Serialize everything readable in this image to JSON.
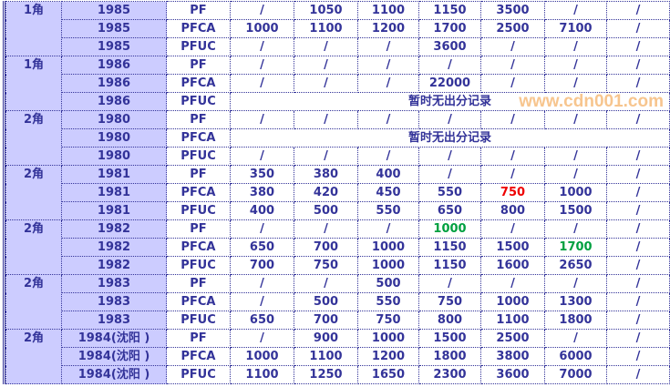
{
  "colors": {
    "text": "#333399",
    "header_bg": "#ccccff",
    "highlight_red": "#ee0000",
    "highlight_green": "#00a040"
  },
  "no_record_text": "暂时无出分记录",
  "watermark": "www.cdn001.com",
  "groups": [
    {
      "denom": "1角",
      "rows": [
        {
          "year": "1985",
          "grade": "PF",
          "values": [
            "/",
            "1050",
            "1100",
            "1150",
            "3500",
            "/",
            "/"
          ]
        },
        {
          "year": "1985",
          "grade": "PFCA",
          "values": [
            "1000",
            "1100",
            "1200",
            "1700",
            "2500",
            "7100",
            "/"
          ]
        },
        {
          "year": "1985",
          "grade": "PFUC",
          "values": [
            "/",
            "/",
            "/",
            "3600",
            "/",
            "/",
            "/"
          ]
        }
      ]
    },
    {
      "denom": "1角",
      "rows": [
        {
          "year": "1986",
          "grade": "PF",
          "values": [
            "/",
            "/",
            "/",
            "/",
            "/",
            "/",
            "/"
          ]
        },
        {
          "year": "1986",
          "grade": "PFCA",
          "values": [
            "/",
            "/",
            "/",
            "22000",
            "/",
            "/",
            "/"
          ]
        },
        {
          "year": "1986",
          "grade": "PFUC",
          "note": "暂时无出分记录"
        }
      ]
    },
    {
      "denom": "2角",
      "rows": [
        {
          "year": "1980",
          "grade": "PF",
          "values": [
            "/",
            "/",
            "/",
            "/",
            "/",
            "/",
            "/"
          ]
        },
        {
          "year": "1980",
          "grade": "PFCA",
          "note": "暂时无出分记录"
        },
        {
          "year": "1980",
          "grade": "PFUC",
          "values": [
            "/",
            "/",
            "/",
            "/",
            "/",
            "/",
            "/"
          ]
        }
      ]
    },
    {
      "denom": "2角",
      "rows": [
        {
          "year": "1981",
          "grade": "PF",
          "values": [
            "350",
            "380",
            "400",
            "/",
            "/",
            "/",
            "/"
          ]
        },
        {
          "year": "1981",
          "grade": "PFCA",
          "values": [
            "380",
            "420",
            "450",
            "550",
            {
              "v": "750",
              "c": "red"
            },
            "1000",
            "/"
          ]
        },
        {
          "year": "1981",
          "grade": "PFUC",
          "values": [
            "400",
            "500",
            "550",
            "650",
            "800",
            "1500",
            "/"
          ]
        }
      ]
    },
    {
      "denom": "2角",
      "rows": [
        {
          "year": "1982",
          "grade": "PF",
          "values": [
            "/",
            "/",
            "/",
            {
              "v": "1000",
              "c": "green"
            },
            "/",
            "/",
            "/"
          ]
        },
        {
          "year": "1982",
          "grade": "PFCA",
          "values": [
            "650",
            "700",
            "1000",
            "1150",
            "1500",
            {
              "v": "1700",
              "c": "green"
            },
            "/"
          ]
        },
        {
          "year": "1982",
          "grade": "PFUC",
          "values": [
            "700",
            "750",
            "1000",
            "1150",
            "1600",
            "2650",
            "/"
          ]
        }
      ]
    },
    {
      "denom": "2角",
      "rows": [
        {
          "year": "1983",
          "grade": "PF",
          "values": [
            "/",
            "/",
            "500",
            "/",
            "/",
            "/",
            "/"
          ]
        },
        {
          "year": "1983",
          "grade": "PFCA",
          "values": [
            "/",
            "500",
            "550",
            "750",
            "1000",
            "1300",
            "/"
          ]
        },
        {
          "year": "1983",
          "grade": "PFUC",
          "values": [
            "650",
            "700",
            "750",
            "800",
            "1100",
            "1800",
            "/"
          ]
        }
      ]
    },
    {
      "denom": "2角",
      "rows": [
        {
          "year": "1984(沈阳 )",
          "grade": "PF",
          "values": [
            "/",
            "900",
            "1000",
            "1500",
            "2500",
            "/",
            "/"
          ]
        },
        {
          "year": "1984(沈阳 )",
          "grade": "PFCA",
          "values": [
            "1000",
            "1100",
            "1200",
            "1800",
            "3800",
            "6000",
            "/"
          ]
        },
        {
          "year": "1984(沈阳 )",
          "grade": "PFUC",
          "values": [
            "1100",
            "1250",
            "1650",
            "2300",
            "3600",
            "7000",
            "/"
          ]
        }
      ]
    }
  ]
}
